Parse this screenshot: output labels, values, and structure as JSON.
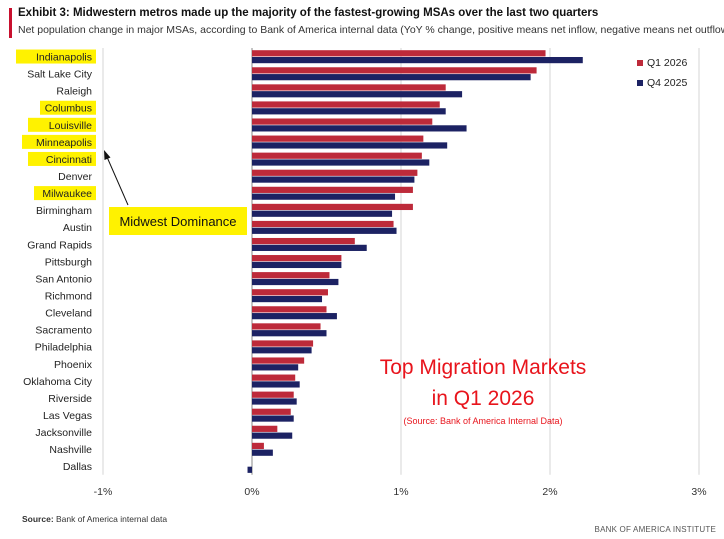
{
  "header": {
    "title": "Exhibit 3: Midwestern metros made up the majority of the fastest-growing MSAs over the last two quarters",
    "subtitle": "Net population change in major MSAs, according to Bank of America internal data (YoY % change, positive means net inflow, negative means net outflow)"
  },
  "annotations": {
    "callout": "Midwest Dominance",
    "overlay_title_line1": "Top Migration Markets",
    "overlay_title_line2": "in Q1 2026",
    "overlay_source": "(Source: Bank of America Internal Data)"
  },
  "footer": {
    "source_label": "Source:",
    "source_text": " Bank of America internal data",
    "brand": "BANK OF AMERICA INSTITUTE"
  },
  "colors": {
    "q1_2026": "#bd2a3a",
    "q4_2025": "#1c2263",
    "highlight": "#fff200",
    "overlay_text": "#e8141c"
  },
  "chart_data": {
    "type": "bar",
    "orientation": "horizontal",
    "categories": [
      "Indianapolis",
      "Salt Lake City",
      "Raleigh",
      "Columbus",
      "Louisville",
      "Minneapolis",
      "Cincinnati",
      "Denver",
      "Milwaukee",
      "Birmingham",
      "Austin",
      "Grand Rapids",
      "Pittsburgh",
      "San Antonio",
      "Richmond",
      "Cleveland",
      "Sacramento",
      "Philadelphia",
      "Phoenix",
      "Oklahoma City",
      "Riverside",
      "Las Vegas",
      "Jacksonville",
      "Nashville",
      "Dallas"
    ],
    "highlighted_categories": [
      "Indianapolis",
      "Columbus",
      "Louisville",
      "Minneapolis",
      "Cincinnati",
      "Milwaukee"
    ],
    "series": [
      {
        "name": "Q1 2026",
        "color": "#bd2a3a",
        "values": [
          1.97,
          1.91,
          1.3,
          1.26,
          1.21,
          1.15,
          1.14,
          1.11,
          1.08,
          1.08,
          0.95,
          0.69,
          0.6,
          0.52,
          0.51,
          0.5,
          0.46,
          0.41,
          0.35,
          0.29,
          0.28,
          0.26,
          0.17,
          0.08,
          0.0
        ]
      },
      {
        "name": "Q4 2025",
        "color": "#1c2263",
        "values": [
          2.22,
          1.87,
          1.41,
          1.3,
          1.44,
          1.31,
          1.19,
          1.09,
          0.96,
          0.94,
          0.97,
          0.77,
          0.6,
          0.58,
          0.47,
          0.57,
          0.5,
          0.4,
          0.31,
          0.32,
          0.3,
          0.28,
          0.27,
          0.14,
          -0.03
        ]
      }
    ],
    "x_ticks": [
      -1,
      0,
      1,
      2,
      3
    ],
    "x_tick_labels": [
      "-1%",
      "0%",
      "1%",
      "2%",
      "3%"
    ],
    "xlim": [
      -1,
      3
    ],
    "grid": "vertical",
    "legend_position": "top-right",
    "xlabel": "",
    "ylabel": ""
  }
}
